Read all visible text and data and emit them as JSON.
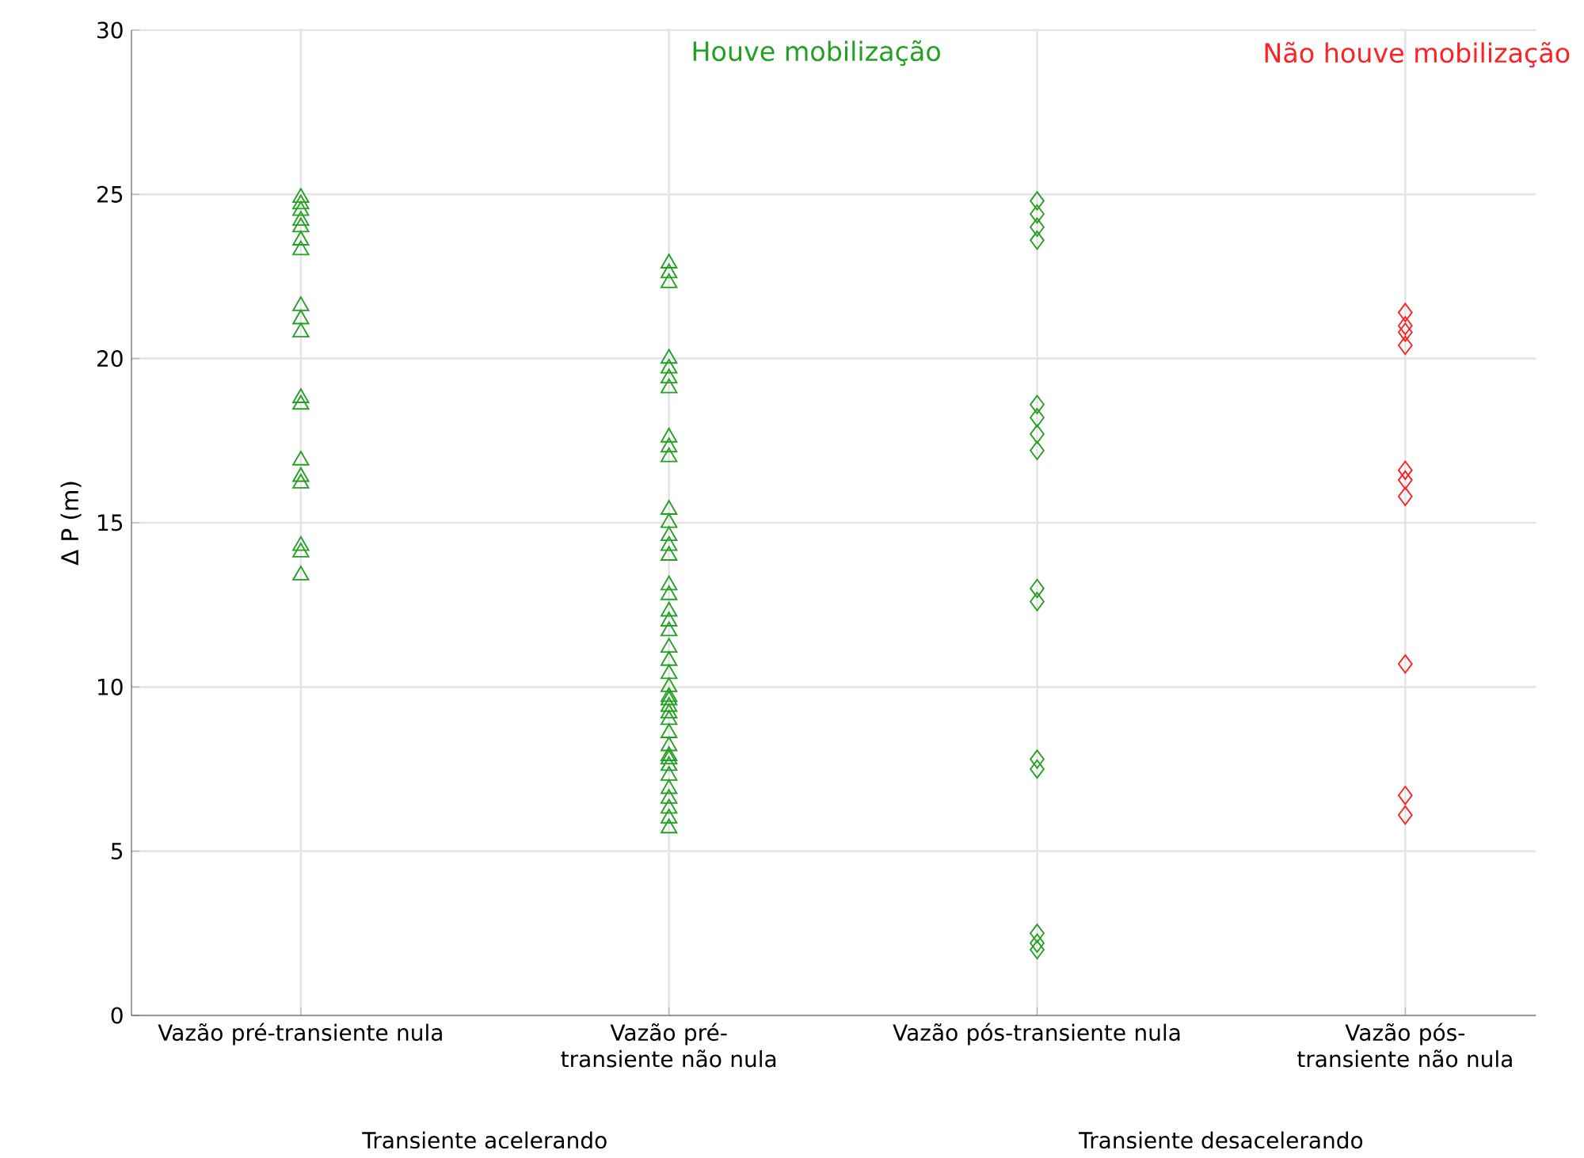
{
  "chart_data": {
    "type": "scatter",
    "ylabel": "Δ P (m)",
    "categories": [
      "Vazão pré-transiente nula",
      "Vazão pré-transiente não nula",
      "Vazão pós-transiente nula",
      "Vazão pós-transiente não nula"
    ],
    "series": [
      {
        "color": "#22a022",
        "marker": "triangle",
        "x": [
          "Vazão pré-transiente nula",
          "Vazão pré-transiente nula",
          "Vazão pré-transiente nula",
          "Vazão pré-transiente nula",
          "Vazão pré-transiente nula",
          "Vazão pré-transiente nula",
          "Vazão pré-transiente nula",
          "Vazão pré-transiente nula",
          "Vazão pré-transiente nula",
          "Vazão pré-transiente nula",
          "Vazão pré-transiente nula",
          "Vazão pré-transiente nula",
          "Vazão pré-transiente nula",
          "Vazão pré-transiente nula",
          "Vazão pré-transiente nula",
          "Vazão pré-transiente nula",
          "Vazão pré-transiente nula",
          "Vazão pré-transiente nula"
        ],
        "values": [
          24.9,
          24.7,
          24.5,
          24.2,
          24.0,
          23.6,
          23.3,
          21.6,
          21.2,
          20.8,
          18.8,
          18.6,
          16.9,
          16.4,
          16.2,
          14.3,
          14.1,
          13.4
        ]
      },
      {
        "color": "#22a022",
        "marker": "triangle",
        "x": [
          "Vazão pré-transiente não nula",
          "Vazão pré-transiente não nula",
          "Vazão pré-transiente não nula",
          "Vazão pré-transiente não nula",
          "Vazão pré-transiente não nula",
          "Vazão pré-transiente não nula",
          "Vazão pré-transiente não nula",
          "Vazão pré-transiente não nula",
          "Vazão pré-transiente não nula",
          "Vazão pré-transiente não nula",
          "Vazão pré-transiente não nula",
          "Vazão pré-transiente não nula",
          "Vazão pré-transiente não nula",
          "Vazão pré-transiente não nula",
          "Vazão pré-transiente não nula",
          "Vazão pré-transiente não nula",
          "Vazão pré-transiente não nula",
          "Vazão pré-transiente não nula",
          "Vazão pré-transiente não nula",
          "Vazão pré-transiente não nula",
          "Vazão pré-transiente não nula",
          "Vazão pré-transiente não nula",
          "Vazão pré-transiente não nula",
          "Vazão pré-transiente não nula",
          "Vazão pré-transiente não nula",
          "Vazão pré-transiente não nula",
          "Vazão pré-transiente não nula",
          "Vazão pré-transiente não nula",
          "Vazão pré-transiente não nula",
          "Vazão pré-transiente não nula",
          "Vazão pré-transiente não nula",
          "Vazão pré-transiente não nula",
          "Vazão pré-transiente não nula",
          "Vazão pré-transiente não nula",
          "Vazão pré-transiente não nula",
          "Vazão pré-transiente não nula",
          "Vazão pré-transiente não nula",
          "Vazão pré-transiente não nula",
          "Vazão pré-transiente não nula",
          "Vazão pré-transiente não nula"
        ],
        "values": [
          22.9,
          22.6,
          22.3,
          20.0,
          19.7,
          19.4,
          19.1,
          17.6,
          17.3,
          17.0,
          15.4,
          15.0,
          14.6,
          14.3,
          14.0,
          13.1,
          12.8,
          12.3,
          12.0,
          11.7,
          11.2,
          10.8,
          10.4,
          10.0,
          9.6,
          9.2,
          8.2,
          7.8,
          6.6,
          6.0,
          9.7,
          9.4,
          9.0,
          8.6,
          7.9,
          7.6,
          7.3,
          6.9,
          6.3,
          5.7
        ]
      },
      {
        "color": "#22a022",
        "marker": "diamond",
        "x": [
          "Vazão pós-transiente nula",
          "Vazão pós-transiente nula",
          "Vazão pós-transiente nula",
          "Vazão pós-transiente nula",
          "Vazão pós-transiente nula",
          "Vazão pós-transiente nula",
          "Vazão pós-transiente nula",
          "Vazão pós-transiente nula",
          "Vazão pós-transiente nula",
          "Vazão pós-transiente nula",
          "Vazão pós-transiente nula",
          "Vazão pós-transiente nula",
          "Vazão pós-transiente nula",
          "Vazão pós-transiente nula",
          "Vazão pós-transiente nula"
        ],
        "values": [
          24.8,
          24.4,
          24.0,
          23.6,
          18.6,
          18.2,
          17.7,
          17.2,
          13.0,
          12.6,
          7.8,
          7.5,
          2.5,
          2.2,
          2.0
        ]
      },
      {
        "color": "#ff2020",
        "marker": "diamond",
        "x": [
          "Vazão pós-transiente não nula",
          "Vazão pós-transiente não nula",
          "Vazão pós-transiente não nula",
          "Vazão pós-transiente não nula",
          "Vazão pós-transiente não nula",
          "Vazão pós-transiente não nula",
          "Vazão pós-transiente não nula",
          "Vazão pós-transiente não nula",
          "Vazão pós-transiente não nula",
          "Vazão pós-transiente não nula"
        ],
        "values": [
          21.4,
          21.0,
          20.8,
          20.4,
          16.6,
          16.3,
          15.8,
          10.7,
          6.7,
          6.1
        ]
      }
    ],
    "ylim": [
      0,
      30
    ],
    "yticks": [
      0,
      5,
      10,
      15,
      20,
      25,
      30
    ],
    "grid": true,
    "annotations": [
      "Houve mobilização",
      "Não houve mobilização",
      "Transiente acelerando",
      "Transiente desacelerando"
    ]
  }
}
